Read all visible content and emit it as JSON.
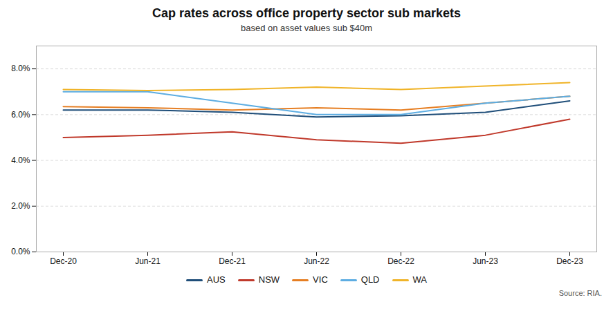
{
  "chart_data": {
    "type": "line",
    "title": "Cap rates across office property sector sub markets",
    "subtitle": "based on asset values sub $40m",
    "categories": [
      "Dec-20",
      "Jun-21",
      "Dec-21",
      "Jun-22",
      "Dec-22",
      "Jun-23",
      "Dec-23"
    ],
    "series": [
      {
        "name": "AUS",
        "color": "#1f4e79",
        "values": [
          0.062,
          0.062,
          0.061,
          0.059,
          0.0595,
          0.061,
          0.066
        ]
      },
      {
        "name": "NSW",
        "color": "#c0392b",
        "values": [
          0.05,
          0.051,
          0.0525,
          0.049,
          0.0475,
          0.051,
          0.058
        ]
      },
      {
        "name": "VIC",
        "color": "#e67e22",
        "values": [
          0.0635,
          0.063,
          0.062,
          0.063,
          0.062,
          0.065,
          0.068
        ]
      },
      {
        "name": "QLD",
        "color": "#5dade2",
        "values": [
          0.07,
          0.07,
          0.065,
          0.06,
          0.06,
          0.065,
          0.068
        ]
      },
      {
        "name": "WA",
        "color": "#f0b429",
        "values": [
          0.071,
          0.0705,
          0.071,
          0.072,
          0.071,
          0.0725,
          0.074
        ]
      }
    ],
    "ylim": [
      0.0,
      0.09
    ],
    "yticks": [
      {
        "value": 0.0,
        "label": "0.0%"
      },
      {
        "value": 0.02,
        "label": "2.0%"
      },
      {
        "value": 0.04,
        "label": "4.0%"
      },
      {
        "value": 0.06,
        "label": "6.0%"
      },
      {
        "value": 0.08,
        "label": "8.0%"
      }
    ],
    "grid": true,
    "legend": "bottom",
    "source": "Source: RIA."
  }
}
